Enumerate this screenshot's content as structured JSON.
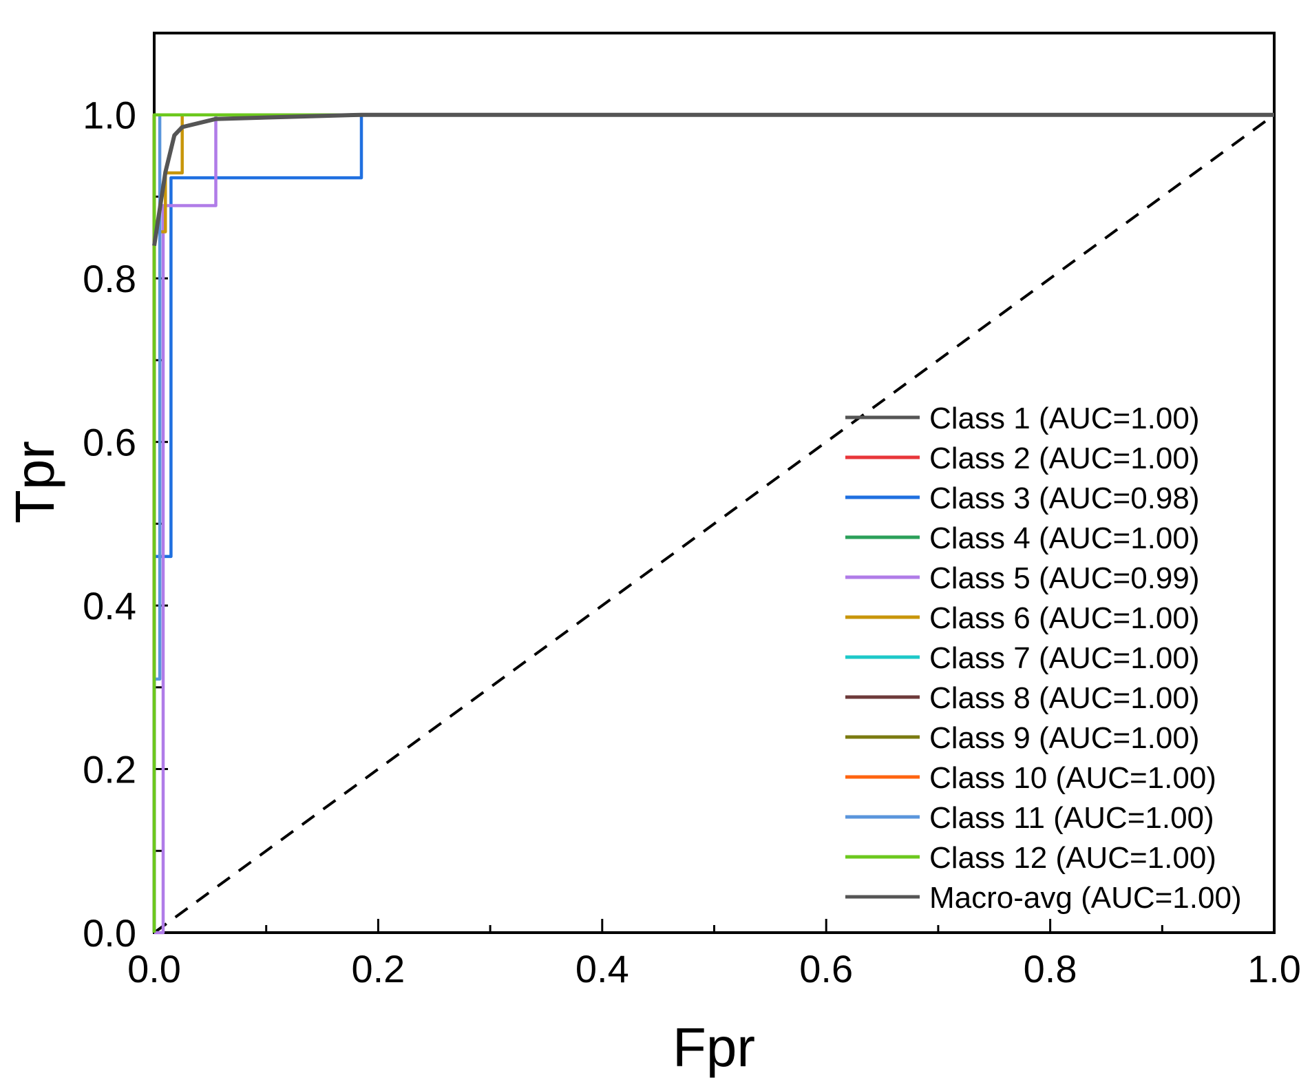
{
  "chart_data": {
    "type": "line",
    "xlabel": "Fpr",
    "ylabel": "Tpr",
    "xlim": [
      0,
      1
    ],
    "ylim": [
      0,
      1.1
    ],
    "x_ticks": [
      "0.0",
      "0.2",
      "0.4",
      "0.6",
      "0.8",
      "1.0"
    ],
    "y_ticks": [
      "0.0",
      "0.2",
      "0.4",
      "0.6",
      "0.8",
      "1.0"
    ],
    "grid": false,
    "legend_position": "bottom-right",
    "diagonal": {
      "x": [
        0,
        1
      ],
      "y": [
        0,
        1
      ],
      "style": "dashed",
      "color": "#000000"
    },
    "series": [
      {
        "name": "Class 1 (AUC=1.00)",
        "color": "#555555",
        "x": [
          0,
          0,
          1
        ],
        "y": [
          0,
          1,
          1
        ]
      },
      {
        "name": "Class 2 (AUC=1.00)",
        "color": "#e8363a",
        "x": [
          0,
          0,
          1
        ],
        "y": [
          0,
          1,
          1
        ]
      },
      {
        "name": "Class 3 (AUC=0.98)",
        "color": "#2070e0",
        "x": [
          0,
          0,
          0.015,
          0.015,
          0.185,
          0.185,
          1
        ],
        "y": [
          0,
          0.46,
          0.46,
          0.923,
          0.923,
          1,
          1
        ]
      },
      {
        "name": "Class 4 (AUC=1.00)",
        "color": "#2ca05a",
        "x": [
          0,
          0,
          1
        ],
        "y": [
          0,
          1,
          1
        ]
      },
      {
        "name": "Class 5 (AUC=0.99)",
        "color": "#b07ce8",
        "x": [
          0,
          0.008,
          0.008,
          0.055,
          0.055,
          1
        ],
        "y": [
          0,
          0,
          0.889,
          0.889,
          1,
          1
        ]
      },
      {
        "name": "Class 6 (AUC=1.00)",
        "color": "#c8960a",
        "x": [
          0,
          0,
          0.01,
          0.01,
          0.025,
          0.025,
          1
        ],
        "y": [
          0,
          0.857,
          0.857,
          0.929,
          0.929,
          1,
          1
        ]
      },
      {
        "name": "Class 7 (AUC=1.00)",
        "color": "#1ec8c8",
        "x": [
          0,
          0,
          1
        ],
        "y": [
          0,
          1,
          1
        ]
      },
      {
        "name": "Class 8 (AUC=1.00)",
        "color": "#6e3a3a",
        "x": [
          0,
          0,
          1
        ],
        "y": [
          0,
          1,
          1
        ]
      },
      {
        "name": "Class 9 (AUC=1.00)",
        "color": "#7a7a10",
        "x": [
          0,
          0,
          1
        ],
        "y": [
          0,
          1,
          1
        ]
      },
      {
        "name": "Class 10 (AUC=1.00)",
        "color": "#ff6410",
        "x": [
          0,
          0,
          1
        ],
        "y": [
          0,
          1,
          1
        ]
      },
      {
        "name": "Class 11 (AUC=1.00)",
        "color": "#5a96dc",
        "x": [
          0,
          0,
          0.005,
          0.005,
          1
        ],
        "y": [
          0,
          0.31,
          0.31,
          1,
          1
        ]
      },
      {
        "name": "Class 12 (AUC=1.00)",
        "color": "#6cc81e",
        "x": [
          0,
          0,
          1
        ],
        "y": [
          0,
          1,
          1
        ]
      },
      {
        "name": "Macro-avg (AUC=1.00)",
        "color": "#555555",
        "x": [
          0,
          0.01,
          0.018,
          0.025,
          0.055,
          0.185,
          1
        ],
        "y": [
          0.84,
          0.93,
          0.975,
          0.985,
          0.995,
          1,
          1
        ]
      }
    ]
  }
}
